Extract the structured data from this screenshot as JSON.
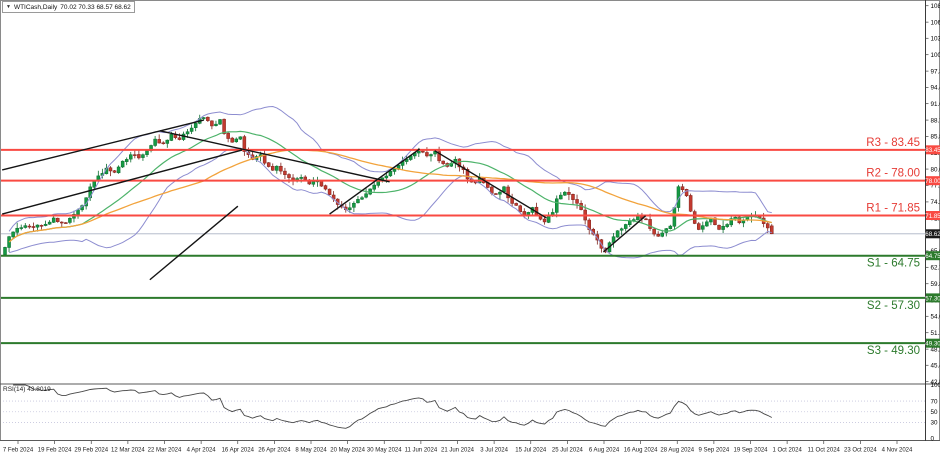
{
  "window": {
    "dropdown_arrow": "▼",
    "symbol_timeframe": "WTICash,Daily",
    "ohlc_text": "70.02 70.33 68.57 68.62"
  },
  "colors": {
    "bull": "#159a43",
    "bull_stroke": "#0a6b2d",
    "bear": "#c33a2f",
    "bear_stroke": "#7e221b",
    "band": "#8d8dd0",
    "ma_fast": "#4db36a",
    "ma_slow": "#f2a33c",
    "res_line": "#f94a42",
    "res_text": "#e63b35",
    "sup_line": "#2c7a2c",
    "sup_text": "#2c7a2c",
    "trendline": "#141414",
    "current_line": "#aab2c4",
    "rsi_line": "#474747",
    "rsi_level": "#c6c6dd",
    "badge_black": "#1c1c1c",
    "axis_text": "#000000",
    "frame": "#8a8a8a"
  },
  "price_axis": {
    "p_top": 109.91,
    "p_bottom": 42.18,
    "ticks": [
      "108.90",
      "106.00",
      "103.15",
      "100.25",
      "97.35",
      "94.45",
      "91.60",
      "88.70",
      "85.80",
      "82.90",
      "80.05",
      "77.15",
      "74.25",
      "71.35",
      "68.45",
      "65.60",
      "62.70",
      "59.80",
      "56.90",
      "54.05",
      "51.15",
      "48.25",
      "45.40",
      "42.50"
    ]
  },
  "sr_levels": [
    {
      "name": "R3",
      "label": "R3 - 83.45",
      "value": 83.45,
      "badge": "83.45",
      "kind": "resistance"
    },
    {
      "name": "R2",
      "label": "R2 - 78.00",
      "value": 78.0,
      "badge": "78.00",
      "kind": "resistance"
    },
    {
      "name": "R1",
      "label": "R1 - 71.85",
      "value": 71.85,
      "badge": "71.85",
      "kind": "resistance"
    },
    {
      "name": "S1",
      "label": "S1 - 64.75",
      "value": 64.75,
      "badge": "64.75",
      "kind": "support"
    },
    {
      "name": "S2",
      "label": "S2 - 57.30",
      "value": 57.3,
      "badge": "57.30",
      "kind": "support"
    },
    {
      "name": "S3",
      "label": "S3 - 49.30",
      "value": 49.3,
      "badge": "49.30",
      "kind": "support"
    }
  ],
  "current_price": {
    "value": 68.62,
    "badge": "68.62"
  },
  "rsi_panel": {
    "label": "RSI(14) 43.8019",
    "period": 14,
    "value": 43.8019,
    "levels": [
      70,
      50,
      30
    ],
    "axis_labels": [
      "100",
      "70",
      "50",
      "30",
      "0"
    ]
  },
  "date_axis": {
    "labels": [
      "7 Feb 2024",
      "19 Feb 2024",
      "29 Feb 2024",
      "12 Mar 2024",
      "22 Mar 2024",
      "4 Apr 2024",
      "16 Apr 2024",
      "26 Apr 2024",
      "8 May 2024",
      "20 May 2024",
      "30 May 2024",
      "11 Jun 2024",
      "21 Jun 2024",
      "3 Jul 2024",
      "15 Jul 2024",
      "25 Jul 2024",
      "6 Aug 2024",
      "16 Aug 2024",
      "28 Aug 2024",
      "9 Sep 2024",
      "19 Sep 2024",
      "1 Oct 2024",
      "11 Oct 2024",
      "23 Oct 2024",
      "4 Nov 2024"
    ]
  },
  "chart_data": {
    "type": "candlestick",
    "symbol": "WTICash",
    "timeframe": "Daily",
    "candle_count": 190,
    "last_ohlc": {
      "open": 70.02,
      "high": 70.33,
      "low": 68.57,
      "close": 68.62
    },
    "ylim": [
      42.18,
      109.91
    ],
    "price_anchors": [
      [
        0,
        66.5
      ],
      [
        2,
        69.2
      ],
      [
        5,
        69.8
      ],
      [
        9,
        70.1
      ],
      [
        12,
        71.2
      ],
      [
        15,
        70.4
      ],
      [
        17,
        71.8
      ],
      [
        19,
        73.5
      ],
      [
        21,
        77.0
      ],
      [
        23,
        78.8
      ],
      [
        25,
        80.2
      ],
      [
        27,
        79.3
      ],
      [
        29,
        81.2
      ],
      [
        31,
        82.8
      ],
      [
        33,
        82.0
      ],
      [
        35,
        83.5
      ],
      [
        37,
        85.2
      ],
      [
        39,
        84.3
      ],
      [
        41,
        86.0
      ],
      [
        43,
        85.2
      ],
      [
        45,
        86.8
      ],
      [
        47,
        88.3
      ],
      [
        49,
        89.3
      ],
      [
        51,
        87.8
      ],
      [
        53,
        88.6
      ],
      [
        54,
        86.3
      ],
      [
        56,
        84.8
      ],
      [
        58,
        85.6
      ],
      [
        59,
        83.2
      ],
      [
        61,
        81.8
      ],
      [
        63,
        82.8
      ],
      [
        64,
        81.2
      ],
      [
        66,
        79.8
      ],
      [
        67,
        80.8
      ],
      [
        69,
        79.0
      ],
      [
        71,
        77.8
      ],
      [
        73,
        78.8
      ],
      [
        75,
        77.2
      ],
      [
        77,
        78.0
      ],
      [
        79,
        76.3
      ],
      [
        81,
        75.0
      ],
      [
        82,
        73.6
      ],
      [
        84,
        72.7
      ],
      [
        86,
        73.8
      ],
      [
        88,
        75.2
      ],
      [
        90,
        76.5
      ],
      [
        92,
        78.0
      ],
      [
        94,
        79.0
      ],
      [
        96,
        80.2
      ],
      [
        98,
        81.2
      ],
      [
        100,
        82.3
      ],
      [
        102,
        83.3
      ],
      [
        104,
        82.4
      ],
      [
        106,
        83.0
      ],
      [
        107,
        81.4
      ],
      [
        109,
        80.6
      ],
      [
        111,
        81.6
      ],
      [
        113,
        79.8
      ],
      [
        114,
        78.4
      ],
      [
        116,
        77.4
      ],
      [
        117,
        78.4
      ],
      [
        119,
        76.6
      ],
      [
        121,
        75.4
      ],
      [
        123,
        76.8
      ],
      [
        124,
        75.0
      ],
      [
        126,
        73.4
      ],
      [
        128,
        72.0
      ],
      [
        130,
        73.2
      ],
      [
        131,
        71.6
      ],
      [
        133,
        70.6
      ],
      [
        135,
        72.4
      ],
      [
        136,
        74.6
      ],
      [
        138,
        76.2
      ],
      [
        140,
        74.8
      ],
      [
        142,
        72.8
      ],
      [
        143,
        70.8
      ],
      [
        145,
        68.4
      ],
      [
        147,
        66.2
      ],
      [
        148,
        65.6
      ],
      [
        149,
        67.2
      ],
      [
        151,
        69.0
      ],
      [
        153,
        70.4
      ],
      [
        154,
        71.2
      ],
      [
        156,
        71.6
      ],
      [
        158,
        71.3
      ],
      [
        159,
        69.4
      ],
      [
        161,
        68.2
      ],
      [
        162,
        68.8
      ],
      [
        164,
        70.0
      ],
      [
        165,
        73.5
      ],
      [
        166,
        77.2
      ],
      [
        168,
        75.2
      ],
      [
        169,
        72.8
      ],
      [
        170,
        70.6
      ],
      [
        171,
        69.6
      ],
      [
        173,
        70.6
      ],
      [
        174,
        71.3
      ],
      [
        175,
        70.3
      ],
      [
        176,
        69.3
      ],
      [
        178,
        70.3
      ],
      [
        179,
        71.3
      ],
      [
        180,
        71.8
      ],
      [
        181,
        70.8
      ],
      [
        182,
        71.3
      ],
      [
        184,
        71.8
      ],
      [
        185,
        72.0
      ],
      [
        186,
        71.5
      ],
      [
        187,
        70.2
      ],
      [
        188,
        69.6
      ],
      [
        189,
        68.62
      ]
    ],
    "trendlines": [
      [
        -0.7,
        79.9,
        49.0,
        88.7
      ],
      [
        -0.7,
        72.1,
        58.4,
        83.4
      ],
      [
        35.7,
        60.5,
        57.4,
        73.5
      ],
      [
        38.2,
        86.8,
        94.8,
        77.8
      ],
      [
        80.0,
        72.1,
        102.2,
        83.6
      ],
      [
        105.9,
        83.3,
        133.5,
        71.4
      ],
      [
        147.5,
        65.4,
        157.9,
        71.8
      ]
    ],
    "indicators": {
      "bollinger": {
        "period": 20,
        "deviation": 2
      },
      "ma_fast": {
        "period": 20
      },
      "ma_slow": {
        "period": 50
      },
      "rsi": {
        "period": 14,
        "last_value": 43.8019,
        "levels": [
          70,
          50,
          30
        ]
      }
    }
  }
}
